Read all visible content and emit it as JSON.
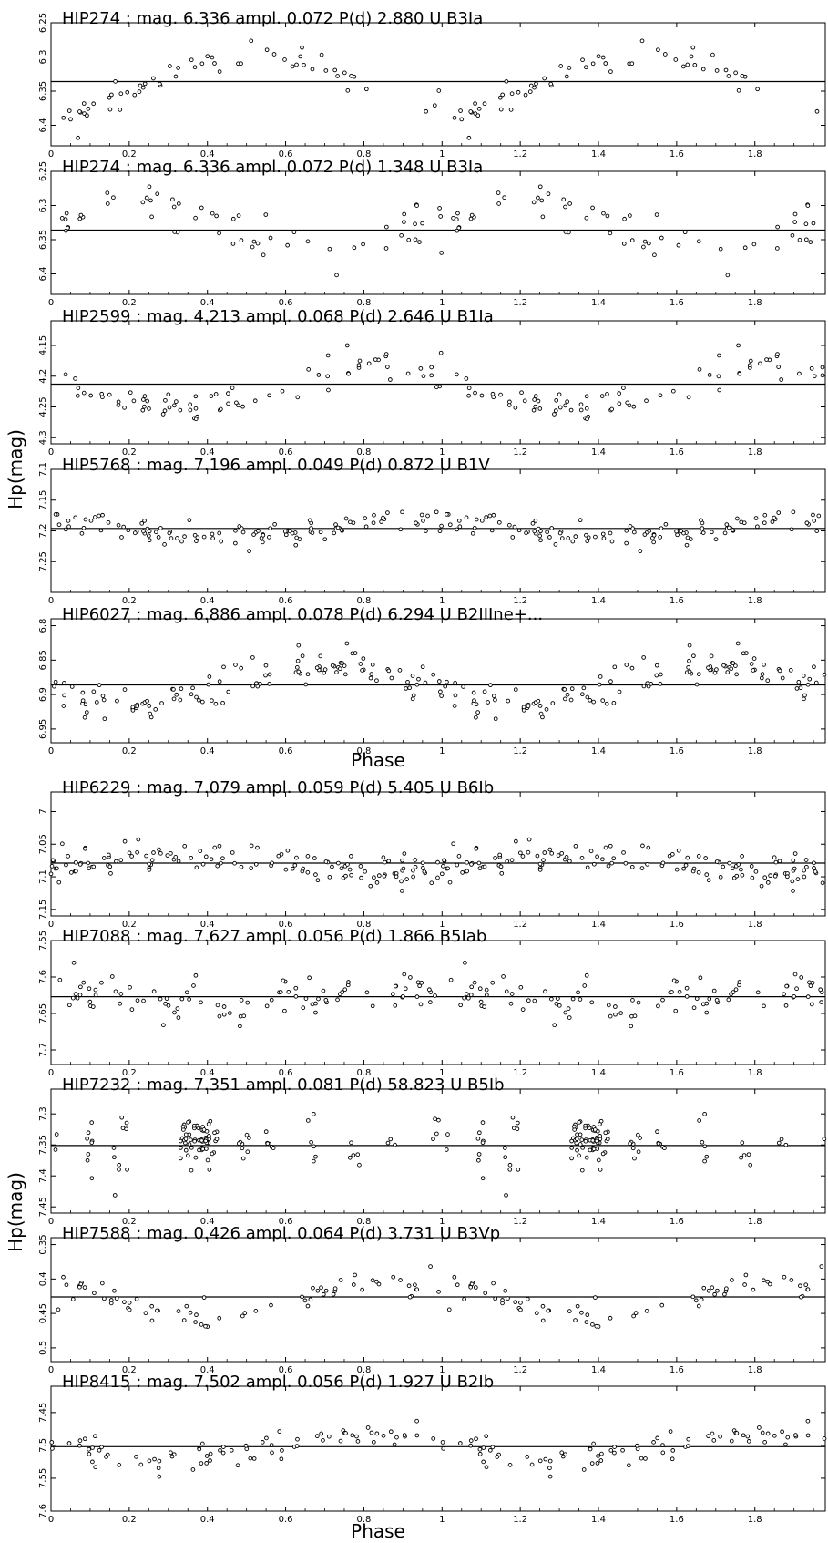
{
  "figure": {
    "y_axis_label": "Hp(mag)",
    "x_axis_label": "Phase",
    "x_tick_labels": [
      "0",
      "0.2",
      "0.4",
      "0.6",
      "0.8",
      "1",
      "1.2",
      "1.4",
      "1.6",
      "1.8"
    ]
  },
  "chart_data": [
    {
      "type": "scatter",
      "title": "HIP274 : mag. 6.336 ampl. 0.072 P(d)  2.880 U B3Ia",
      "xlim": [
        0,
        1.98
      ],
      "ylim": [
        6.25,
        6.43
      ],
      "y_inverted": true,
      "y_ticks": [
        6.25,
        6.3,
        6.35,
        6.4
      ],
      "y_tick_labels": [
        "6.25",
        "6.3",
        "6.35",
        "6.4"
      ],
      "mean_mag": 6.336,
      "seed": 11,
      "n_points": 60,
      "amplitude": 0.04,
      "scatter": 0.012,
      "peak_phase": 0.55,
      "profile": "sine"
    },
    {
      "type": "scatter",
      "title": "HIP274 : mag. 6.336 ampl. 0.072 P(d)  1.348 U B3Ia",
      "xlim": [
        0,
        1.98
      ],
      "ylim": [
        6.25,
        6.43
      ],
      "y_inverted": true,
      "y_ticks": [
        6.25,
        6.3,
        6.35,
        6.4
      ],
      "y_tick_labels": [
        "6.25",
        "6.3",
        "6.35",
        "6.4"
      ],
      "mean_mag": 6.336,
      "seed": 23,
      "n_points": 60,
      "amplitude": 0.025,
      "scatter": 0.018,
      "peak_phase": 0.2,
      "profile": "sine"
    },
    {
      "type": "scatter",
      "title": "HIP2599 : mag. 4.213 ampl. 0.068 P(d)  2.646 U B1Ia",
      "xlim": [
        0,
        1.98
      ],
      "ylim": [
        4.11,
        4.31
      ],
      "y_inverted": true,
      "y_ticks": [
        4.15,
        4.2,
        4.25,
        4.3
      ],
      "y_tick_labels": [
        "4.15",
        "4.2",
        "4.25",
        "4.3"
      ],
      "mean_mag": 4.213,
      "seed": 37,
      "n_points": 75,
      "amplitude": 0.035,
      "scatter": 0.015,
      "peak_phase": 0.82,
      "profile": "sine"
    },
    {
      "type": "scatter",
      "title": "HIP5768 : mag. 7.196 ampl. 0.049 P(d)  0.872 U B1V",
      "xlim": [
        0,
        1.98
      ],
      "ylim": [
        7.1,
        7.3
      ],
      "y_inverted": true,
      "y_ticks": [
        7.1,
        7.15,
        7.2,
        7.25
      ],
      "y_tick_labels": [
        "7.1",
        "7.15",
        "7.2",
        "7.25"
      ],
      "mean_mag": 7.196,
      "seed": 41,
      "n_points": 110,
      "amplitude": 0.012,
      "scatter": 0.01,
      "peak_phase": 0.95,
      "profile": "sine"
    },
    {
      "type": "scatter",
      "title": "HIP6027 : mag. 6.886 ampl. 0.078 P(d)  6.294 U B2IIIne+...",
      "xlim": [
        0,
        1.98
      ],
      "ylim": [
        6.79,
        6.97
      ],
      "y_inverted": true,
      "y_ticks": [
        6.8,
        6.85,
        6.9,
        6.95
      ],
      "y_tick_labels": [
        "6.8",
        "6.85",
        "6.9",
        "6.95"
      ],
      "mean_mag": 6.886,
      "seed": 53,
      "n_points": 120,
      "amplitude": 0.028,
      "scatter": 0.012,
      "peak_phase": 0.7,
      "profile": "sine"
    },
    {
      "type": "scatter",
      "title": "HIP6229 : mag. 7.079 ampl. 0.059 P(d)  5.405 U B6Ib",
      "xlim": [
        0,
        1.98
      ],
      "ylim": [
        6.97,
        7.16
      ],
      "y_inverted": true,
      "y_ticks": [
        7.0,
        7.05,
        7.1,
        7.15
      ],
      "y_tick_labels": [
        "7",
        "7.05",
        "7.1",
        "7.15"
      ],
      "mean_mag": 7.079,
      "seed": 67,
      "n_points": 130,
      "amplitude": 0.012,
      "scatter": 0.012,
      "peak_phase": 0.35,
      "profile": "sine"
    },
    {
      "type": "scatter",
      "title": "HIP7088 : mag. 7.627 ampl. 0.056 P(d)  1.866    B5Iab",
      "xlim": [
        0,
        1.98
      ],
      "ylim": [
        7.55,
        7.72
      ],
      "y_inverted": true,
      "y_ticks": [
        7.55,
        7.6,
        7.65,
        7.7
      ],
      "y_tick_labels": [
        "7.55",
        "7.6",
        "7.65",
        "7.7"
      ],
      "mean_mag": 7.627,
      "seed": 71,
      "n_points": 95,
      "amplitude": 0.01,
      "scatter": 0.015,
      "peak_phase": 0.95,
      "profile": "sine"
    },
    {
      "type": "scatter",
      "title": "HIP7232 : mag. 7.351 ampl. 0.081 P(d) 58.823 U B5Ib",
      "xlim": [
        0,
        1.98
      ],
      "ylim": [
        7.26,
        7.46
      ],
      "y_inverted": true,
      "y_ticks": [
        7.3,
        7.35,
        7.4,
        7.45
      ],
      "y_tick_labels": [
        "7.3",
        "7.35",
        "7.4",
        "7.45"
      ],
      "mean_mag": 7.351,
      "seed": 83,
      "n_points": 130,
      "amplitude": 0.0,
      "scatter": 0.02,
      "peak_phase": 0.4,
      "profile": "clumped",
      "clumps": [
        [
          0.0,
          0.03,
          0.025,
          6
        ],
        [
          0.1,
          0.01,
          0.02,
          8
        ],
        [
          0.18,
          0.02,
          0.03,
          10
        ],
        [
          0.38,
          0.05,
          0.015,
          60
        ],
        [
          0.5,
          0.02,
          0.01,
          8
        ],
        [
          0.56,
          0.01,
          0.01,
          6
        ],
        [
          0.66,
          0.02,
          0.02,
          6
        ],
        [
          0.78,
          0.02,
          0.01,
          5
        ],
        [
          0.87,
          0.01,
          0.01,
          3
        ]
      ]
    },
    {
      "type": "scatter",
      "title": "HIP7588 : mag. 0.426 ampl. 0.064 P(d)  3.731 U B3Vp",
      "xlim": [
        0,
        1.98
      ],
      "ylim": [
        0.34,
        0.52
      ],
      "y_inverted": true,
      "y_ticks": [
        0.35,
        0.4,
        0.45,
        0.5
      ],
      "y_tick_labels": [
        "0.35",
        "0.4",
        "0.45",
        "0.5"
      ],
      "mean_mag": 0.426,
      "seed": 97,
      "n_points": 70,
      "amplitude": 0.025,
      "scatter": 0.012,
      "peak_phase": 0.9,
      "profile": "sine"
    },
    {
      "type": "scatter",
      "title": "HIP8415 : mag. 7.502 ampl. 0.056 P(d)  1.927 U B2Ib",
      "xlim": [
        0,
        1.98
      ],
      "ylim": [
        7.41,
        7.6
      ],
      "y_inverted": true,
      "y_ticks": [
        7.45,
        7.5,
        7.55,
        7.6
      ],
      "y_tick_labels": [
        "7.45",
        "7.5",
        "7.55",
        "7.6"
      ],
      "mean_mag": 7.502,
      "seed": 101,
      "n_points": 80,
      "amplitude": 0.02,
      "scatter": 0.01,
      "peak_phase": 0.8,
      "profile": "sine"
    }
  ]
}
